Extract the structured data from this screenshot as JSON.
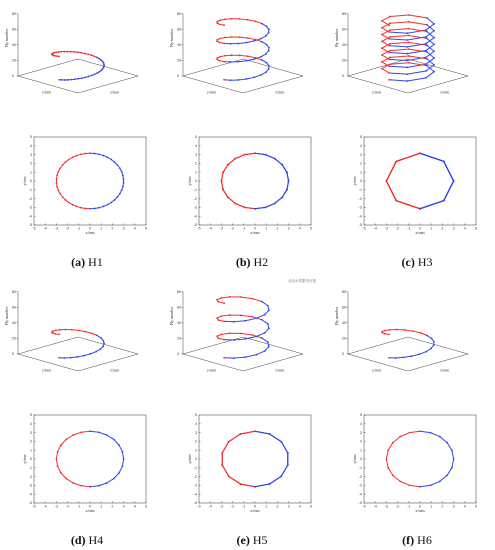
{
  "watermark_text": "北京大学图书分馆",
  "colors": {
    "red": "#f03232",
    "blue": "#3446e6",
    "axis": "#444444"
  },
  "chart_data": [
    {
      "type": "line",
      "name": "H1",
      "caption_letter": "(a)",
      "caption_label": "H1",
      "turns": 1,
      "points_per_turn": 46,
      "z_max": 30,
      "radius": 3,
      "ylabel_3d": "Ply number",
      "xlabel_3d": "x/mm",
      "zlabel_3d": "y/mm",
      "xlabel_2d": "x/mm",
      "ylabel_2d": "y/mm",
      "xlim": [
        -5,
        5
      ],
      "ylim": [
        -5,
        5
      ],
      "zlim": [
        0,
        80
      ],
      "ticks": [
        "-4",
        "-3",
        "-2",
        "-1",
        "0",
        "1",
        "2",
        "3",
        "4"
      ]
    },
    {
      "type": "line",
      "name": "H2",
      "caption_letter": "(b)",
      "caption_label": "H2",
      "turns": 3,
      "points_per_turn": 20,
      "z_max": 70,
      "radius": 3,
      "ylabel_3d": "Ply number",
      "xlabel_3d": "x/mm",
      "zlabel_3d": "y/mm",
      "xlabel_2d": "x/mm",
      "ylabel_2d": "y/mm",
      "xlim": [
        -5,
        5
      ],
      "ylim": [
        -5,
        5
      ],
      "zlim": [
        0,
        80
      ],
      "ticks": [
        "-4",
        "-3",
        "-2",
        "-1",
        "0",
        "1",
        "2",
        "3",
        "4"
      ]
    },
    {
      "type": "line",
      "name": "H3",
      "caption_letter": "(c)",
      "caption_label": "H3",
      "turns": 8,
      "points_per_turn": 8,
      "z_max": 70,
      "radius": 3,
      "ylabel_3d": "Ply number",
      "xlabel_3d": "x/mm",
      "zlabel_3d": "y/mm",
      "xlabel_2d": "x/mm",
      "ylabel_2d": "y/mm",
      "xlim": [
        -5,
        5
      ],
      "ylim": [
        -5,
        5
      ],
      "zlim": [
        0,
        80
      ],
      "ticks": [
        "-4",
        "-3",
        "-2",
        "-1",
        "0",
        "1",
        "2",
        "3",
        "4"
      ]
    },
    {
      "type": "line",
      "name": "H4",
      "caption_letter": "(d)",
      "caption_label": "H4",
      "turns": 1,
      "points_per_turn": 24,
      "z_max": 30,
      "radius": 3,
      "ylabel_3d": "Ply number",
      "xlabel_3d": "x/mm",
      "zlabel_3d": "y/mm",
      "xlabel_2d": "x/mm",
      "ylabel_2d": "y/mm",
      "xlim": [
        -5,
        5
      ],
      "ylim": [
        -5,
        5
      ],
      "zlim": [
        0,
        80
      ],
      "ticks": [
        "-4",
        "-3",
        "-2",
        "-1",
        "0",
        "1",
        "2",
        "3",
        "4"
      ]
    },
    {
      "type": "line",
      "name": "H5",
      "caption_letter": "(e)",
      "caption_label": "H5",
      "turns": 3,
      "points_per_turn": 14,
      "z_max": 70,
      "radius": 3,
      "ylabel_3d": "Ply number",
      "xlabel_3d": "x/mm",
      "zlabel_3d": "y/mm",
      "xlabel_2d": "x/mm",
      "ylabel_2d": "y/mm",
      "xlim": [
        -5,
        5
      ],
      "ylim": [
        -5,
        5
      ],
      "zlim": [
        0,
        80
      ],
      "ticks": [
        "-4",
        "-3",
        "-2",
        "-1",
        "0",
        "1",
        "2",
        "3",
        "4"
      ]
    },
    {
      "type": "line",
      "name": "H6",
      "caption_letter": "(f)",
      "caption_label": "H6",
      "turns": 1,
      "points_per_turn": 20,
      "z_max": 30,
      "radius": 3,
      "ylabel_3d": "Ply number",
      "xlabel_3d": "x/mm",
      "zlabel_3d": "y/mm",
      "xlabel_2d": "x/mm",
      "ylabel_2d": "y/mm",
      "xlim": [
        -5,
        5
      ],
      "ylim": [
        -5,
        5
      ],
      "zlim": [
        0,
        80
      ],
      "ticks": [
        "-4",
        "-3",
        "-2",
        "-1",
        "0",
        "1",
        "2",
        "3",
        "4"
      ]
    }
  ]
}
